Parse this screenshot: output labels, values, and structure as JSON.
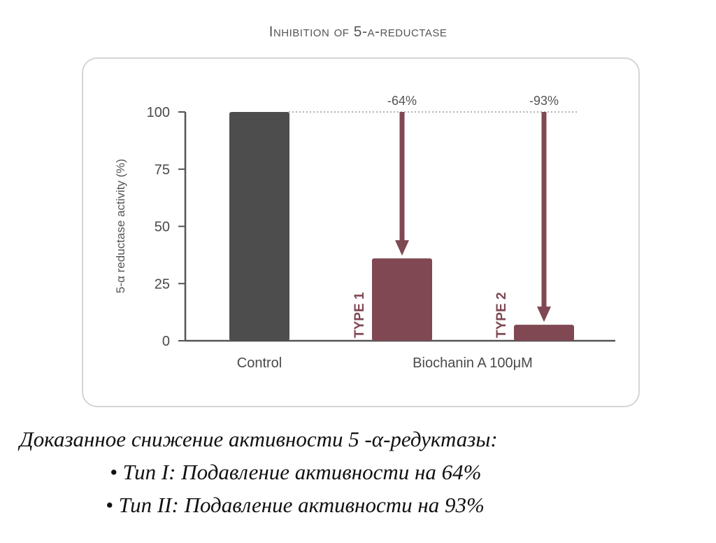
{
  "chart_data": {
    "type": "bar",
    "title": "Inhibition of 5-α-reductase",
    "ylabel": "5-α reductase activity (%)",
    "ylim": [
      0,
      100
    ],
    "yticks": [
      0,
      25,
      50,
      75,
      100
    ],
    "grid": false,
    "groups": [
      {
        "label": "Control",
        "bars": [
          {
            "name": "",
            "value": 100
          }
        ]
      },
      {
        "label": "Biochanin A 100μM",
        "bars": [
          {
            "name": "TYPE 1",
            "value": 36
          },
          {
            "name": "TYPE 2",
            "value": 7
          }
        ]
      }
    ],
    "reference_line": {
      "value": 100,
      "style": "dotted"
    },
    "annotations": [
      {
        "text": "-64%",
        "from": 100,
        "to": 36,
        "bar": "TYPE 1"
      },
      {
        "text": "-93%",
        "from": 100,
        "to": 7,
        "bar": "TYPE 2"
      }
    ],
    "colors": {
      "control": "#4d4d4d",
      "treatment": "#7f4853",
      "axis": "#555555",
      "reference": "#999999"
    }
  },
  "caption": {
    "heading": "Доказанное снижение активности 5 -α-редуктазы:",
    "items": [
      "• Тип I: Подавление активности на 64%",
      "• Тип II: Подавление активности на 93%"
    ]
  }
}
